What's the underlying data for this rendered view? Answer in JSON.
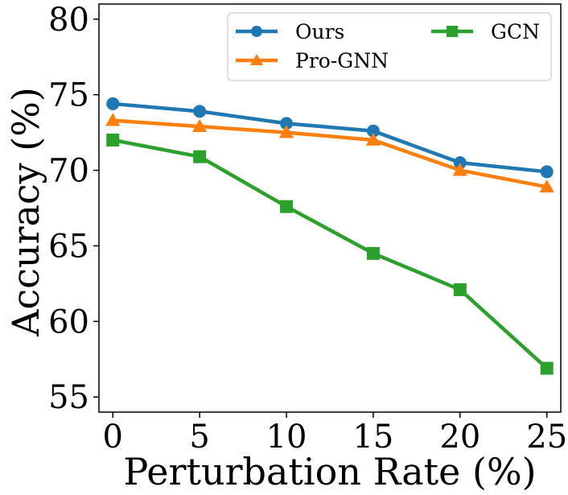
{
  "chart_data": {
    "type": "line",
    "xlabel": "Perturbation Rate (%)",
    "ylabel": "Accuracy (%)",
    "x": [
      0,
      5,
      10,
      15,
      20,
      25
    ],
    "xlim": [
      -0.8,
      25.8
    ],
    "ylim": [
      54.0,
      81.0
    ],
    "xticks": [
      "0",
      "5",
      "10",
      "15",
      "20",
      "25"
    ],
    "yticks": [
      "55",
      "60",
      "65",
      "70",
      "75",
      "80"
    ],
    "grid": false,
    "legend_position": "top-right",
    "series": [
      {
        "name": "Ours",
        "color": "#1f77b4",
        "marker": "circle",
        "values": [
          74.4,
          73.9,
          73.1,
          72.6,
          70.5,
          69.9
        ]
      },
      {
        "name": "Pro-GNN",
        "color": "#ff7f0e",
        "marker": "triangle",
        "values": [
          73.3,
          72.9,
          72.5,
          72.0,
          70.0,
          68.9
        ]
      },
      {
        "name": "GCN",
        "color": "#2ca02c",
        "marker": "square",
        "values": [
          72.0,
          70.9,
          67.6,
          64.5,
          62.1,
          56.9
        ]
      }
    ]
  }
}
